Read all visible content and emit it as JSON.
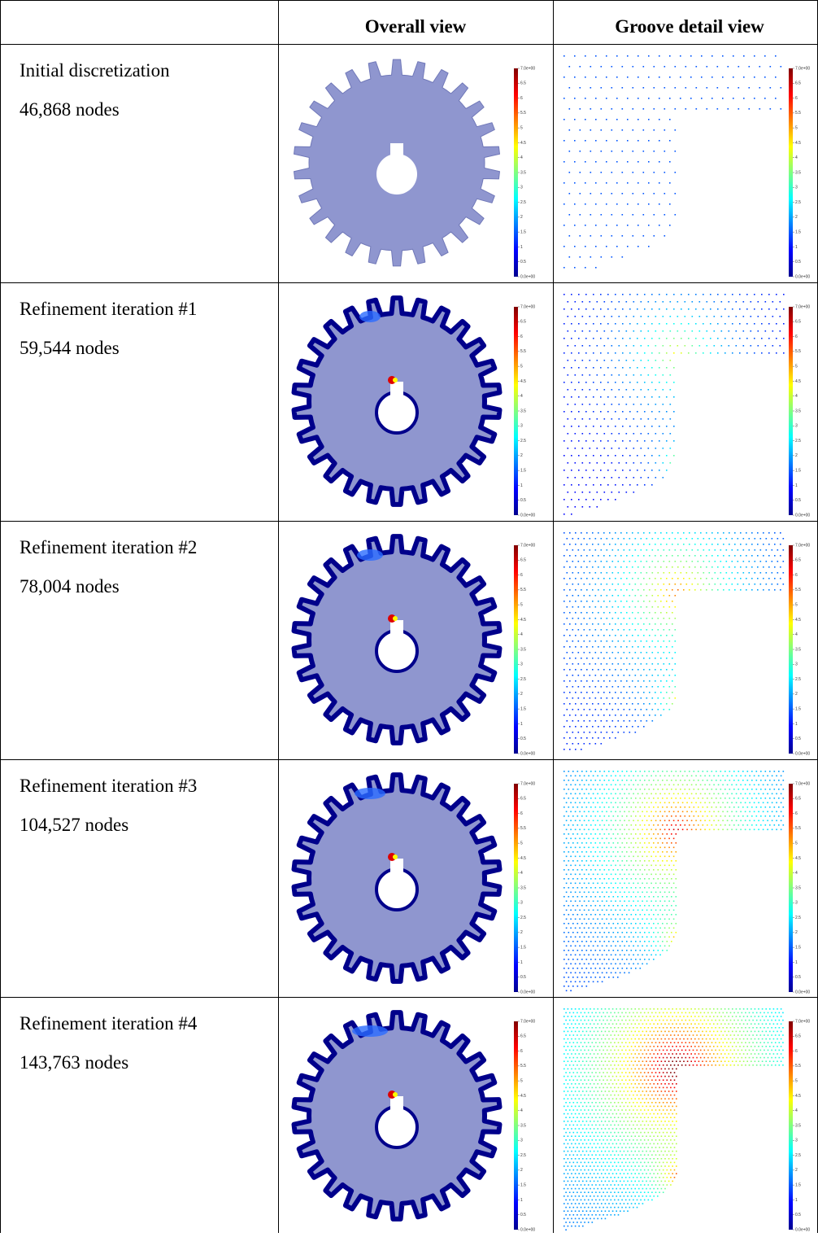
{
  "header": {
    "columns": [
      "Overall view",
      "Groove detail view"
    ]
  },
  "rows": [
    {
      "label": "Initial discretization",
      "nodes": "46,868 nodes"
    },
    {
      "label": "Refinement iteration #1",
      "nodes": "59,544 nodes"
    },
    {
      "label": "Refinement iteration #2",
      "nodes": "78,004 nodes"
    },
    {
      "label": "Refinement iteration #3",
      "nodes": "104,527 nodes"
    },
    {
      "label": "Refinement iteration #4",
      "nodes": "143,763 nodes"
    }
  ],
  "colorbar": {
    "ticks": [
      "7.0e+00",
      "6.5",
      "6",
      "5.5",
      "5",
      "4.5",
      "4",
      "3.5",
      "3",
      "2.5",
      "2",
      "1.5",
      "1",
      "0.5",
      "0.0e+00"
    ]
  }
}
